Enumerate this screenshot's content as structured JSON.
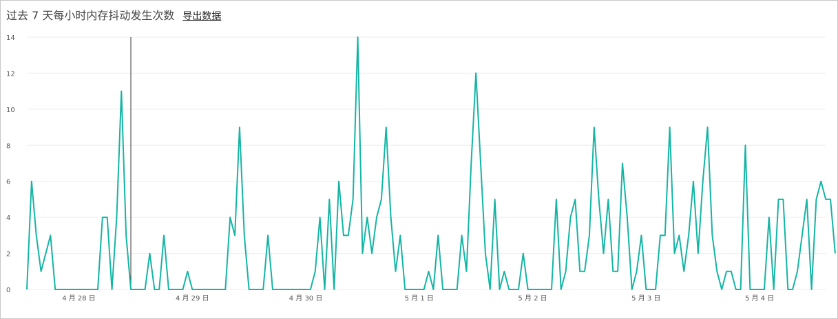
{
  "header": {
    "title": "过去 7 天每小时内存抖动发生次数",
    "export_label": "导出数据"
  },
  "chart_data": {
    "type": "line",
    "title": "过去 7 天每小时内存抖动发生次数",
    "xlabel": "",
    "ylabel": "",
    "ylim": [
      0,
      14
    ],
    "y_ticks": [
      0,
      2,
      4,
      6,
      8,
      10,
      12,
      14
    ],
    "grid": true,
    "line_color": "#13b5a4",
    "date_labels": [
      "4 月 28 日",
      "4 月 29 日",
      "4 月 30 日",
      "5 月 1 日",
      "5 月 2 日",
      "5 月 3 日",
      "5 月 4 日"
    ],
    "date_label_index": [
      11,
      35,
      59,
      83,
      107,
      131,
      155
    ],
    "cursor_index": 22,
    "series": [
      {
        "values": [
          0,
          6,
          3,
          1,
          2,
          3,
          0,
          0,
          0,
          0,
          0,
          0,
          0,
          0,
          0,
          0,
          4,
          4,
          0,
          4,
          11,
          3,
          0,
          0,
          0,
          0,
          2,
          0,
          0,
          3,
          0,
          0,
          0,
          0,
          1,
          0,
          0,
          0,
          0,
          0,
          0,
          0,
          0,
          4,
          3,
          9,
          3,
          0,
          0,
          0,
          0,
          3,
          0,
          0,
          0,
          0,
          0,
          0,
          0,
          0,
          0,
          1,
          4,
          0,
          5,
          0,
          6,
          3,
          3,
          5,
          14,
          2,
          4,
          2,
          4,
          5,
          9,
          4,
          1,
          3,
          0,
          0,
          0,
          0,
          0,
          1,
          0,
          3,
          0,
          0,
          0,
          0,
          3,
          1,
          7,
          12,
          7,
          2,
          0,
          5,
          0,
          1,
          0,
          0,
          0,
          2,
          0,
          0,
          0,
          0,
          0,
          0,
          5,
          0,
          1,
          4,
          5,
          1,
          1,
          3,
          9,
          5,
          2,
          5,
          1,
          1,
          7,
          4,
          0,
          1,
          3,
          0,
          0,
          0,
          3,
          3,
          9,
          2,
          3,
          1,
          3,
          6,
          2,
          6,
          9,
          3,
          1,
          0,
          1,
          1,
          0,
          0,
          8,
          0,
          0,
          0,
          0,
          4,
          0,
          5,
          5,
          0,
          0,
          1,
          3,
          5,
          0,
          5,
          6,
          5,
          5,
          2
        ]
      }
    ]
  }
}
